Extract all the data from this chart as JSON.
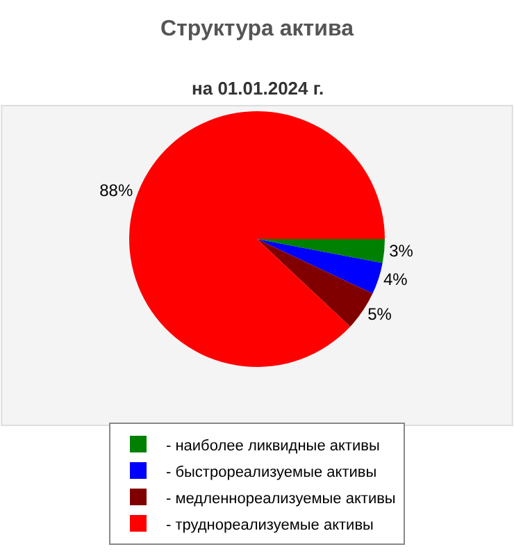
{
  "chart_data": {
    "type": "pie",
    "title": "Структура актива",
    "subtitle": "на 01.01.2024 г.",
    "categories": [
      "- наиболее ликвидные активы",
      "- быстрореализуемые активы",
      "- медленнореализуемые активы",
      "- труднореализуемые активы"
    ],
    "values": [
      3,
      4,
      5,
      88
    ],
    "colors": [
      "#008000",
      "#0000ff",
      "#800000",
      "#ff0000"
    ],
    "value_labels": [
      "3%",
      "4%",
      "5%",
      "88%"
    ],
    "legend": "bottom"
  }
}
